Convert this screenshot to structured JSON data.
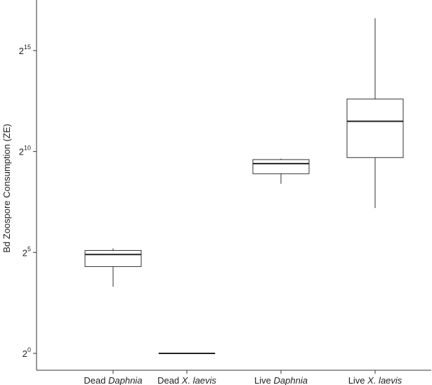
{
  "chart_data": {
    "type": "box",
    "title": "",
    "xlabel": "",
    "ylabel": "Bd Zoospore Consumption (ZE)",
    "y_scale": "log2",
    "ylim_log2": [
      -0.3,
      17.5
    ],
    "y_ticks": [
      {
        "base": "2",
        "exp": "0",
        "log2": 0
      },
      {
        "base": "2",
        "exp": "5",
        "log2": 5
      },
      {
        "base": "2",
        "exp": "10",
        "log2": 10
      },
      {
        "base": "2",
        "exp": "15",
        "log2": 15
      }
    ],
    "grid": false,
    "categories": [
      {
        "prefix": "Dead ",
        "italic": "Daphnia"
      },
      {
        "prefix": "Dead ",
        "italic": "X. laevis"
      },
      {
        "prefix": "Live ",
        "italic": "Daphnia"
      },
      {
        "prefix": "Live ",
        "italic": "X. laevis"
      }
    ],
    "boxes_log2": [
      {
        "whisker_low": 3.3,
        "q1": 4.3,
        "median": 4.9,
        "q3": 5.1,
        "whisker_high": 5.2
      },
      {
        "whisker_low": 0.0,
        "q1": 0.0,
        "median": 0.0,
        "q3": 0.0,
        "whisker_high": 0.0
      },
      {
        "whisker_low": 8.4,
        "q1": 8.9,
        "median": 9.4,
        "q3": 9.6,
        "whisker_high": 9.65
      },
      {
        "whisker_low": 7.2,
        "q1": 9.7,
        "median": 11.5,
        "q3": 12.6,
        "whisker_high": 16.6
      }
    ],
    "colors": {
      "box_fill": "#ffffff",
      "stroke": "#333333",
      "median": "#222222"
    }
  }
}
